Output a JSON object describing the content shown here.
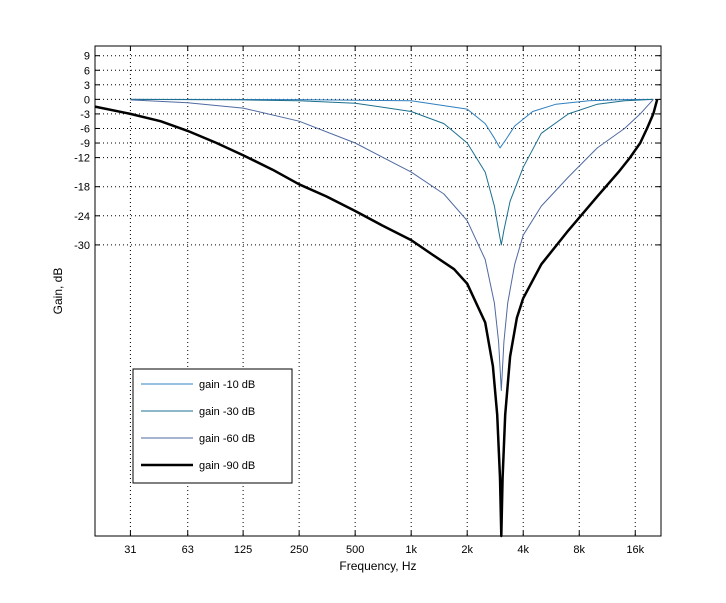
{
  "chart_data": {
    "type": "line",
    "title": "",
    "xlabel": "Frequency, Hz",
    "ylabel": "Gain, dB",
    "x_scale": "log",
    "xlim": [
      20,
      22000
    ],
    "ylim": [
      -90,
      11
    ],
    "x_ticks": [
      {
        "value": 31,
        "label": "31"
      },
      {
        "value": 63,
        "label": "63"
      },
      {
        "value": 125,
        "label": "125"
      },
      {
        "value": 250,
        "label": "250"
      },
      {
        "value": 500,
        "label": "500"
      },
      {
        "value": 1000,
        "label": "1k"
      },
      {
        "value": 2000,
        "label": "2k"
      },
      {
        "value": 4000,
        "label": "4k"
      },
      {
        "value": 8000,
        "label": "8k"
      },
      {
        "value": 16000,
        "label": "16k"
      }
    ],
    "y_ticks": [
      {
        "value": 9,
        "label": "9"
      },
      {
        "value": 6,
        "label": "6"
      },
      {
        "value": 3,
        "label": "3"
      },
      {
        "value": 0,
        "label": "0"
      },
      {
        "value": -3,
        "label": "-3"
      },
      {
        "value": -6,
        "label": "-6"
      },
      {
        "value": -9,
        "label": "-9"
      },
      {
        "value": -12,
        "label": "-12"
      },
      {
        "value": -18,
        "label": "-18"
      },
      {
        "value": -24,
        "label": "-24"
      },
      {
        "value": -30,
        "label": "-30"
      }
    ],
    "grid": true,
    "legend_position": "lower-left",
    "series": [
      {
        "name": "gain -10 dB",
        "color": "#2f7fbf",
        "points": [
          [
            31,
            0
          ],
          [
            250,
            -0.05
          ],
          [
            1000,
            -0.3
          ],
          [
            2000,
            -2
          ],
          [
            2500,
            -5
          ],
          [
            2800,
            -8
          ],
          [
            3000,
            -10
          ],
          [
            3200,
            -8.5
          ],
          [
            3600,
            -5.5
          ],
          [
            4500,
            -2.5
          ],
          [
            6000,
            -1
          ],
          [
            9000,
            -0.3
          ],
          [
            14000,
            -0.05
          ],
          [
            20000,
            0
          ]
        ]
      },
      {
        "name": "gain -30 dB",
        "color": "#1c6f8f",
        "points": [
          [
            31,
            0
          ],
          [
            125,
            -0.1
          ],
          [
            250,
            -0.3
          ],
          [
            500,
            -0.8
          ],
          [
            1000,
            -2.5
          ],
          [
            1500,
            -5
          ],
          [
            2000,
            -9
          ],
          [
            2500,
            -15
          ],
          [
            2800,
            -22
          ],
          [
            2950,
            -27
          ],
          [
            3050,
            -30
          ],
          [
            3150,
            -27
          ],
          [
            3400,
            -21
          ],
          [
            4000,
            -14
          ],
          [
            5000,
            -7
          ],
          [
            7000,
            -3
          ],
          [
            10000,
            -1
          ],
          [
            14000,
            -0.3
          ],
          [
            20000,
            0
          ]
        ]
      },
      {
        "name": "gain -60 dB",
        "color": "#4f6aa0",
        "points": [
          [
            31,
            -0.1
          ],
          [
            63,
            -0.7
          ],
          [
            125,
            -1.8
          ],
          [
            250,
            -4.5
          ],
          [
            500,
            -9
          ],
          [
            1000,
            -15
          ],
          [
            1500,
            -19.5
          ],
          [
            2000,
            -25
          ],
          [
            2500,
            -33
          ],
          [
            2800,
            -42
          ],
          [
            2950,
            -50
          ],
          [
            3050,
            -60
          ],
          [
            3150,
            -50
          ],
          [
            3300,
            -42
          ],
          [
            3600,
            -34
          ],
          [
            4000,
            -28
          ],
          [
            5000,
            -22
          ],
          [
            7000,
            -16
          ],
          [
            10000,
            -10
          ],
          [
            14000,
            -6
          ],
          [
            17000,
            -3
          ],
          [
            20000,
            0
          ]
        ]
      },
      {
        "name": "gain -90 dB",
        "color": "#000000",
        "points": [
          [
            20,
            -1.5
          ],
          [
            31,
            -3
          ],
          [
            45,
            -4.5
          ],
          [
            63,
            -6.5
          ],
          [
            90,
            -9
          ],
          [
            125,
            -11.5
          ],
          [
            180,
            -14.5
          ],
          [
            250,
            -17.5
          ],
          [
            350,
            -20
          ],
          [
            500,
            -23
          ],
          [
            700,
            -26
          ],
          [
            1000,
            -29
          ],
          [
            1300,
            -32
          ],
          [
            1700,
            -35
          ],
          [
            2000,
            -38
          ],
          [
            2500,
            -46
          ],
          [
            2750,
            -55
          ],
          [
            2900,
            -65
          ],
          [
            3000,
            -78
          ],
          [
            3050,
            -90
          ],
          [
            3100,
            -78
          ],
          [
            3200,
            -65
          ],
          [
            3400,
            -53
          ],
          [
            3700,
            -45
          ],
          [
            4000,
            -41
          ],
          [
            5000,
            -34
          ],
          [
            7000,
            -27
          ],
          [
            10000,
            -20
          ],
          [
            13000,
            -15
          ],
          [
            15000,
            -12
          ],
          [
            17000,
            -9
          ],
          [
            18500,
            -6
          ],
          [
            20000,
            -3
          ],
          [
            21000,
            0
          ]
        ]
      }
    ]
  }
}
